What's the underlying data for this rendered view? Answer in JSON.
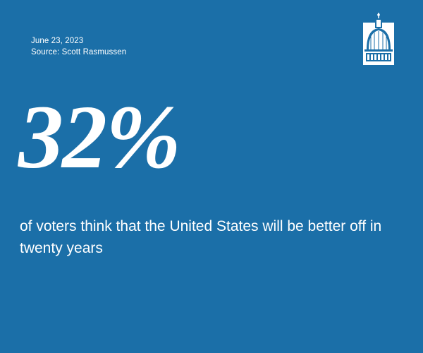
{
  "header": {
    "date": "June 23, 2023",
    "source": "Source: Scott Rasmussen"
  },
  "logo": {
    "icon": "capitol-dome-icon"
  },
  "stat": {
    "value": "32%",
    "caption": "of voters think that the United States will be better off in twenty years"
  },
  "colors": {
    "background": "#1b6fa8",
    "text": "#ffffff"
  }
}
